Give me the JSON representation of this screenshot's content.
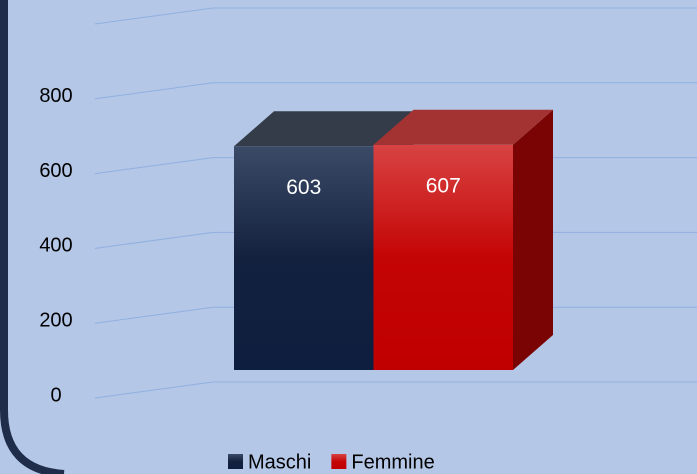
{
  "chart_data": {
    "type": "bar3d",
    "categories": [
      null
    ],
    "series": [
      {
        "name": "Maschi",
        "color": "#1f2d4a",
        "values": [
          603
        ]
      },
      {
        "name": "Femmine",
        "color": "#c00000",
        "values": [
          607
        ]
      }
    ],
    "ylim": [
      0,
      1000
    ],
    "yticks": [
      0,
      200,
      400,
      600,
      800
    ],
    "grid": true,
    "show_value_labels": true,
    "legend": "bottom"
  }
}
